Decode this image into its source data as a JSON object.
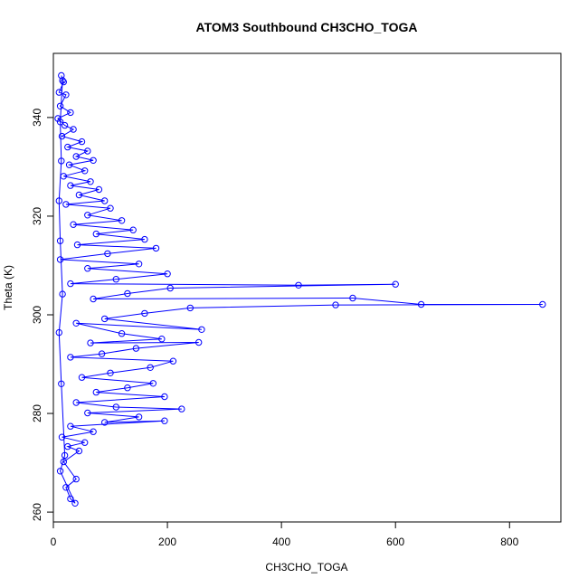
{
  "chart_data": {
    "type": "scatter",
    "title": "ATOM3 Southbound CH3CHO_TOGA",
    "xlabel": "CH3CHO_TOGA",
    "ylabel": "Theta (K)",
    "xlim": [
      0,
      890
    ],
    "ylim": [
      258,
      353
    ],
    "x_ticks": [
      0,
      200,
      400,
      600,
      800
    ],
    "y_ticks": [
      260,
      280,
      300,
      320,
      340
    ],
    "grid": false,
    "legend": "none",
    "colors": {
      "series": "#0000ff",
      "axis": "#000000",
      "background": "#ffffff"
    },
    "series": [
      {
        "style": "line+points",
        "points": [
          [
            14,
            348.5
          ],
          [
            18,
            347.2
          ],
          [
            10,
            345.1
          ],
          [
            22,
            344.6
          ],
          [
            12,
            342.3
          ],
          [
            30,
            341.0
          ],
          [
            8,
            339.8
          ],
          [
            20,
            338.4
          ],
          [
            35,
            337.6
          ],
          [
            15,
            336.2
          ],
          [
            50,
            335.1
          ],
          [
            25,
            334.0
          ],
          [
            60,
            333.2
          ],
          [
            40,
            332.1
          ],
          [
            70,
            331.3
          ],
          [
            28,
            330.4
          ],
          [
            55,
            329.2
          ],
          [
            18,
            328.1
          ],
          [
            65,
            327.0
          ],
          [
            30,
            326.2
          ],
          [
            80,
            325.4
          ],
          [
            45,
            324.3
          ],
          [
            90,
            323.1
          ],
          [
            22,
            322.4
          ],
          [
            100,
            321.6
          ],
          [
            60,
            320.2
          ],
          [
            120,
            319.1
          ],
          [
            35,
            318.3
          ],
          [
            140,
            317.2
          ],
          [
            75,
            316.4
          ],
          [
            160,
            315.3
          ],
          [
            42,
            314.2
          ],
          [
            180,
            313.5
          ],
          [
            95,
            312.4
          ],
          [
            12,
            311.2
          ],
          [
            150,
            310.3
          ],
          [
            60,
            309.4
          ],
          [
            200,
            308.3
          ],
          [
            110,
            307.2
          ],
          [
            30,
            306.3
          ],
          [
            430,
            306.0
          ],
          [
            600,
            306.2
          ],
          [
            205,
            305.4
          ],
          [
            130,
            304.3
          ],
          [
            70,
            303.2
          ],
          [
            525,
            303.4
          ],
          [
            645,
            302.1
          ],
          [
            858,
            302.1
          ],
          [
            495,
            302.0
          ],
          [
            240,
            301.4
          ],
          [
            160,
            300.3
          ],
          [
            90,
            299.2
          ],
          [
            260,
            297.0
          ],
          [
            40,
            298.3
          ],
          [
            120,
            296.2
          ],
          [
            190,
            295.1
          ],
          [
            65,
            294.3
          ],
          [
            255,
            294.4
          ],
          [
            145,
            293.2
          ],
          [
            85,
            292.1
          ],
          [
            30,
            291.4
          ],
          [
            210,
            290.6
          ],
          [
            170,
            289.3
          ],
          [
            100,
            288.2
          ],
          [
            50,
            287.3
          ],
          [
            175,
            286.1
          ],
          [
            130,
            285.2
          ],
          [
            75,
            284.3
          ],
          [
            195,
            283.4
          ],
          [
            40,
            282.2
          ],
          [
            110,
            281.3
          ],
          [
            225,
            280.9
          ],
          [
            60,
            280.1
          ],
          [
            150,
            279.3
          ],
          [
            90,
            278.2
          ],
          [
            195,
            278.5
          ],
          [
            30,
            277.4
          ],
          [
            70,
            276.3
          ],
          [
            15,
            275.2
          ],
          [
            55,
            274.1
          ],
          [
            25,
            273.3
          ],
          [
            45,
            272.4
          ],
          [
            18,
            270.2
          ],
          [
            40,
            266.7
          ],
          [
            22,
            265.0
          ],
          [
            30,
            262.7
          ],
          [
            38,
            261.8
          ],
          [
            12,
            268.3
          ],
          [
            20,
            271.5
          ],
          [
            14,
            286.0
          ],
          [
            10,
            296.4
          ],
          [
            16,
            304.2
          ],
          [
            12,
            315.0
          ],
          [
            10,
            323.1
          ],
          [
            14,
            331.2
          ],
          [
            12,
            339.1
          ],
          [
            16,
            347.5
          ]
        ]
      }
    ]
  }
}
